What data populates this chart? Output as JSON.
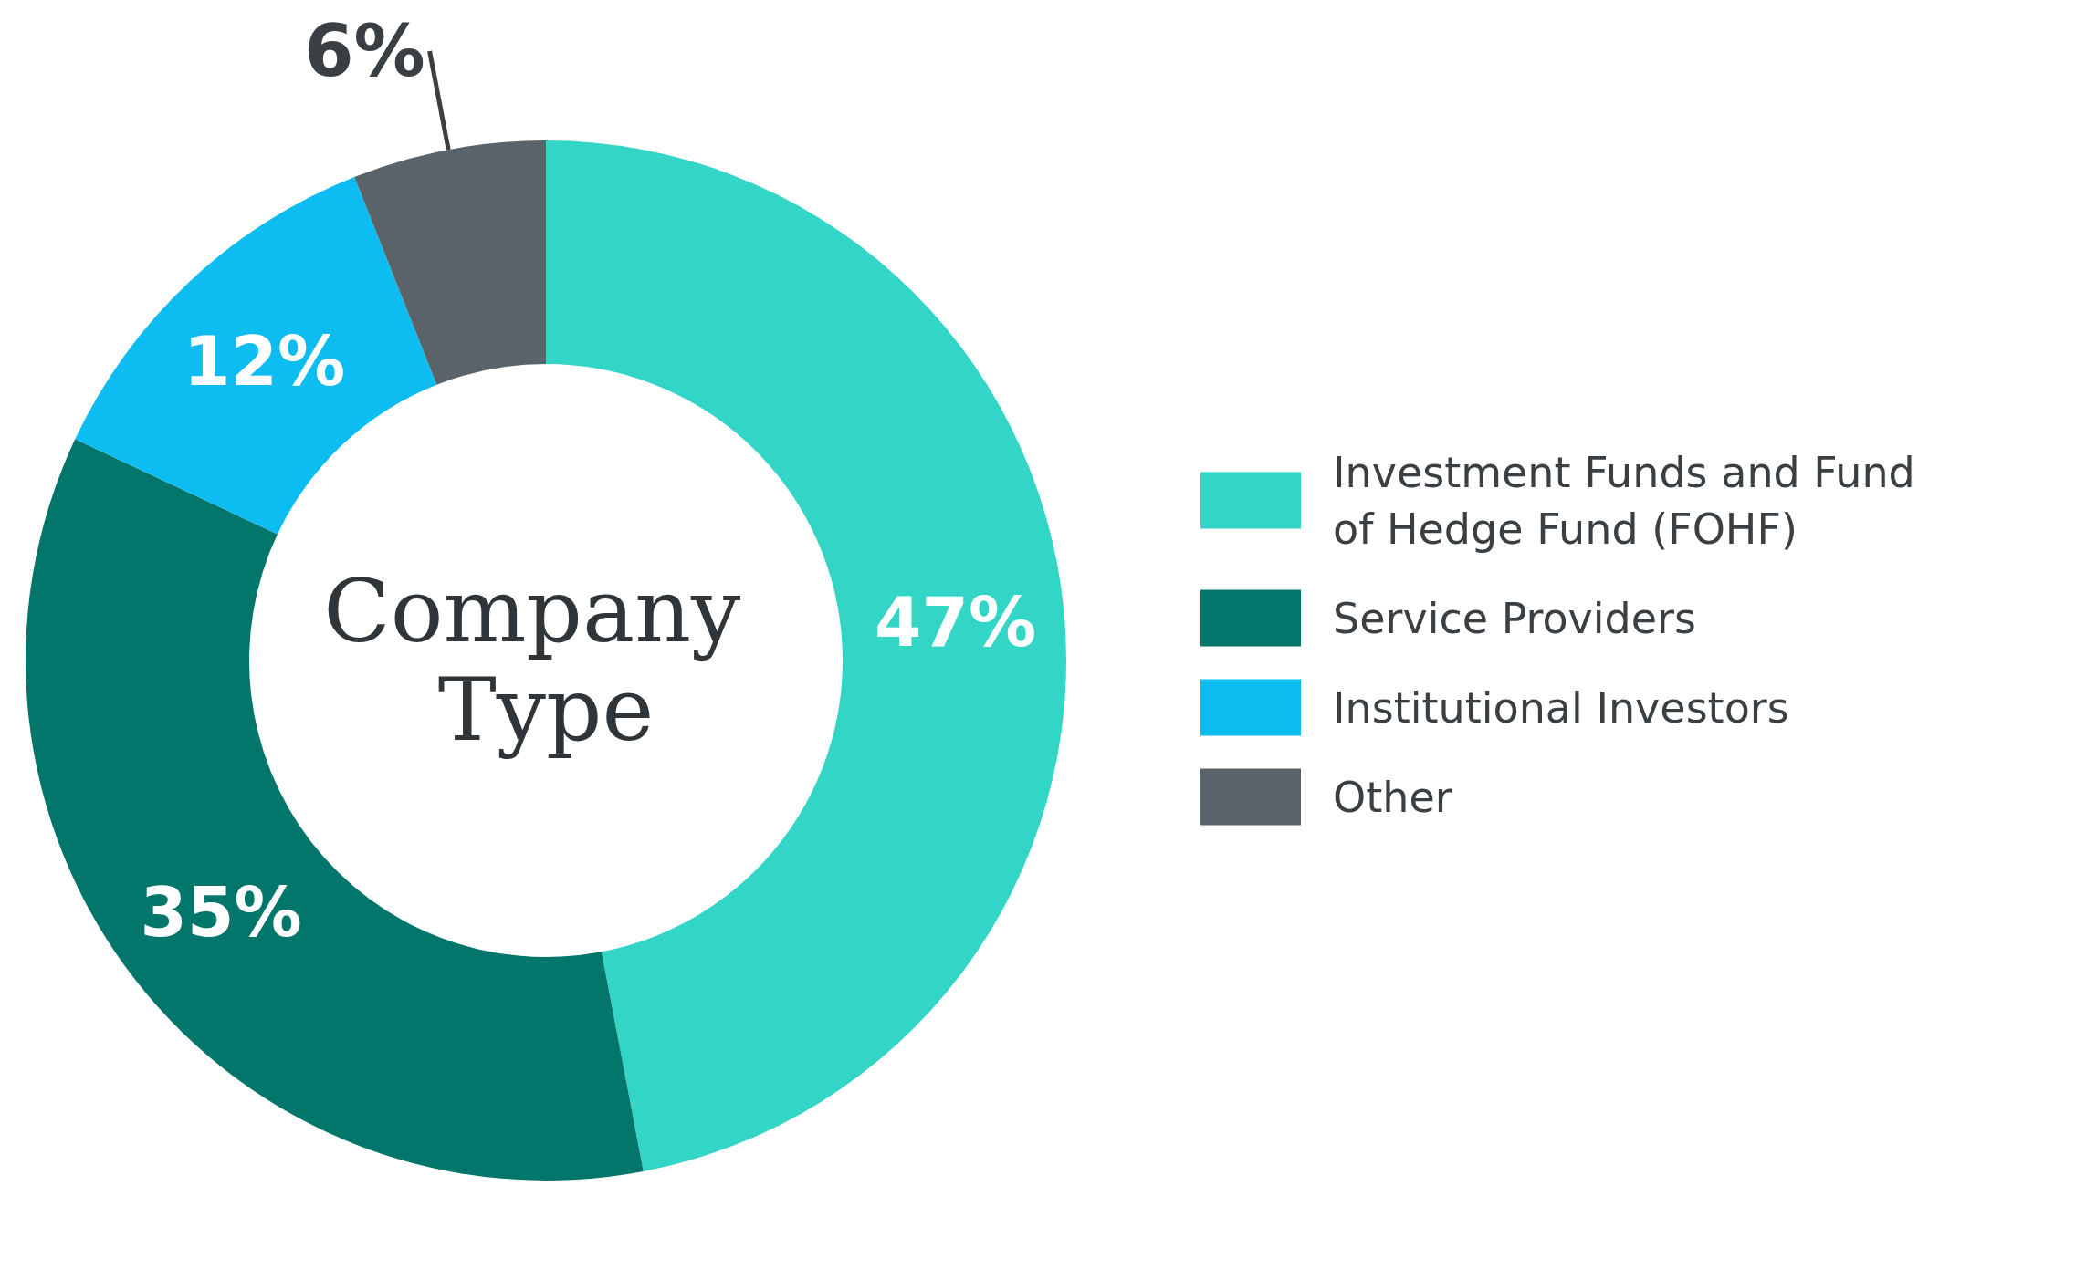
{
  "chart_data": {
    "type": "donut",
    "title": "Company Type",
    "categories": [
      "Investment Funds and Fund of Hedge Fund (FOHF)",
      "Service Providers",
      "Institutional Investors",
      "Other"
    ],
    "values": [
      47,
      35,
      12,
      6
    ],
    "value_labels": [
      "47%",
      "35%",
      "12%",
      "6%"
    ],
    "colors": [
      "#33d6c6",
      "#02766b",
      "#0dbcf0",
      "#5a6369"
    ],
    "legend": "right"
  }
}
